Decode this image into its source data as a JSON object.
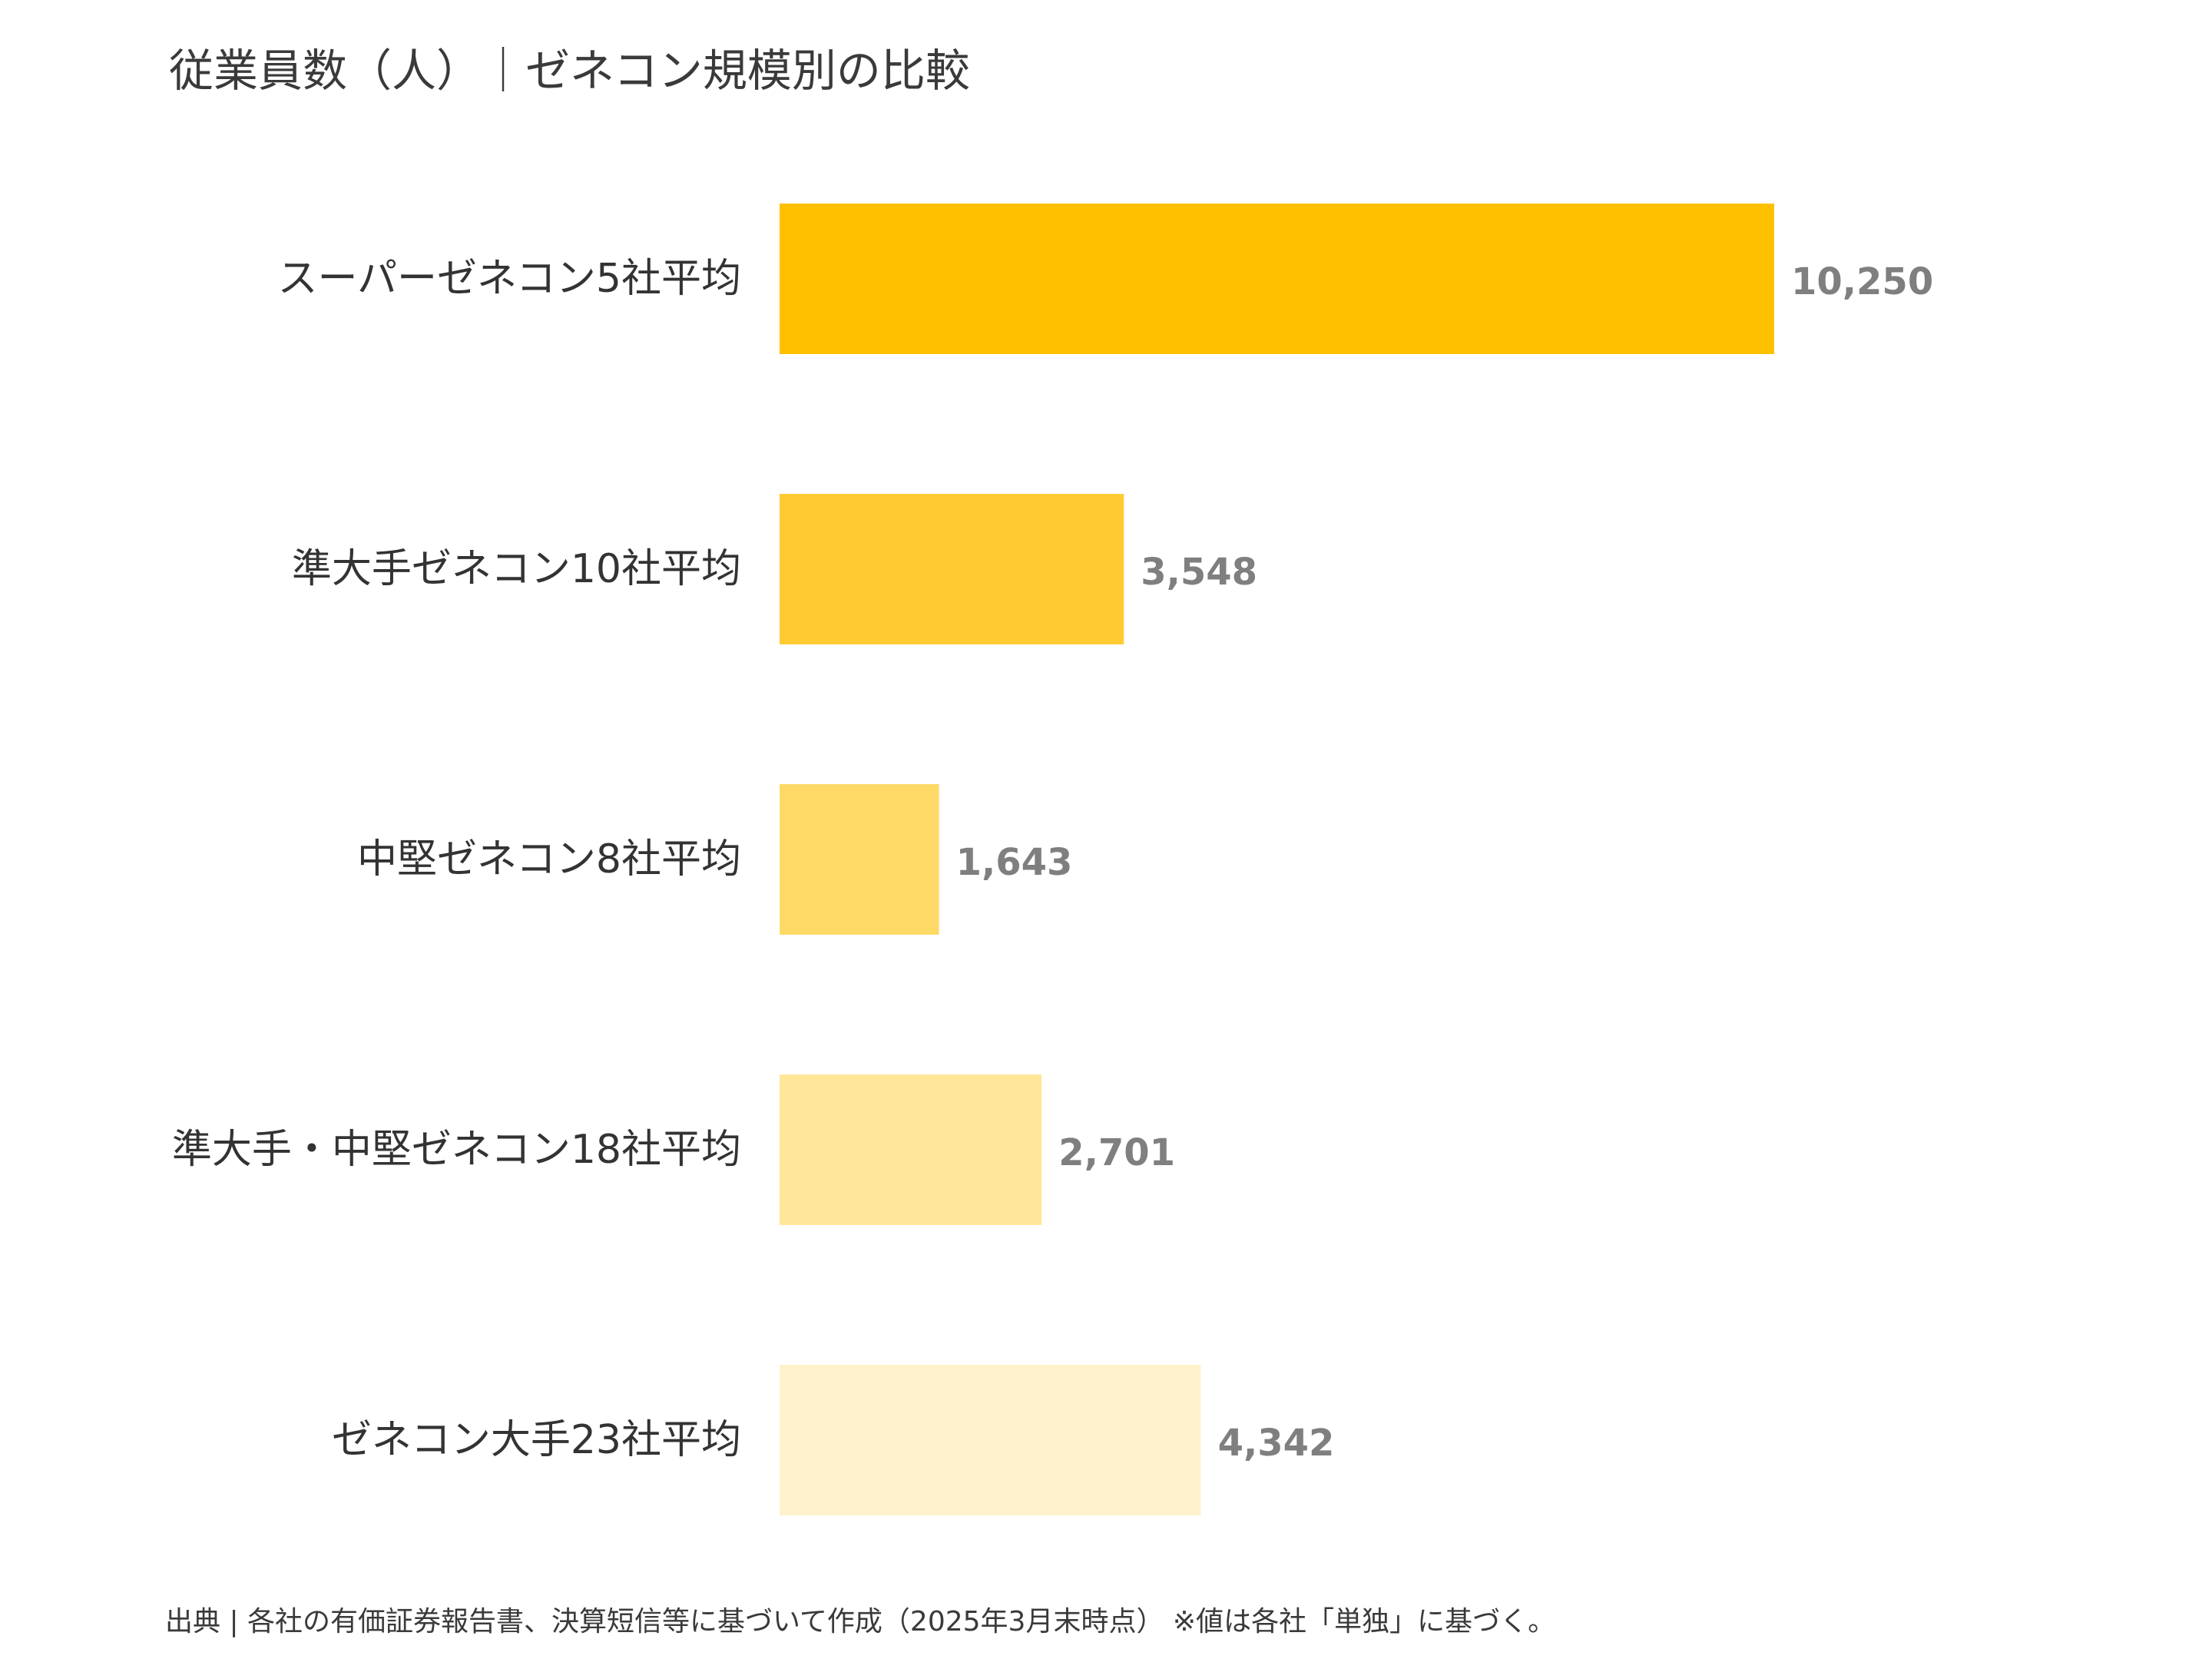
{
  "chart_data": {
    "type": "bar",
    "orientation": "horizontal",
    "title": "従業員数（人）｜ゼネコン規模別の比較",
    "categories": [
      "スーパーゼネコン5社平均",
      "準大手ゼネコン10社平均",
      "中堅ゼネコン8社平均",
      "準大手・中堅ゼネコン18社平均",
      "ゼネコン大手23社平均"
    ],
    "values": [
      10250,
      3548,
      1643,
      2701,
      4342
    ],
    "value_labels": [
      "10,250",
      "3,548",
      "1,643",
      "2,701",
      "4,342"
    ],
    "colors": [
      "#FFC000",
      "#FFCA32",
      "#FFD966",
      "#FFE699",
      "#FFF2CC"
    ],
    "xlim": [
      0,
      10250
    ],
    "grid": false,
    "legend": "none"
  },
  "footer": {
    "source": "出典 | 各社の有価証券報告書、決算短信等に基づいて作成（2025年3月末時点） ※値は各社「単独」に基づく。"
  }
}
